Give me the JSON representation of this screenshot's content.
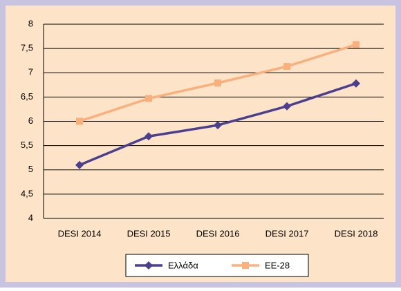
{
  "chart_data": {
    "type": "line",
    "categories": [
      "DESI 2014",
      "DESI 2015",
      "DESI 2016",
      "DESI 2017",
      "DESI 2018"
    ],
    "series": [
      {
        "name": "Ελλάδα",
        "color": "#4b3f8f",
        "marker": "diamond",
        "values": [
          5.1,
          5.69,
          5.92,
          6.31,
          6.78
        ]
      },
      {
        "name": "EE-28",
        "color": "#f9b07c",
        "marker": "square",
        "values": [
          6.0,
          6.47,
          6.79,
          7.13,
          7.58
        ]
      }
    ],
    "ylim": [
      4,
      8
    ],
    "yticks": [
      4,
      {
        "value": 4.5,
        "label": "4,5"
      },
      5,
      {
        "value": 5.5,
        "label": "5,5"
      },
      6,
      {
        "value": 6.5,
        "label": "6,5"
      },
      7,
      {
        "value": 7.5,
        "label": "7,5"
      },
      8
    ],
    "grid": true,
    "legend": "bottom"
  }
}
